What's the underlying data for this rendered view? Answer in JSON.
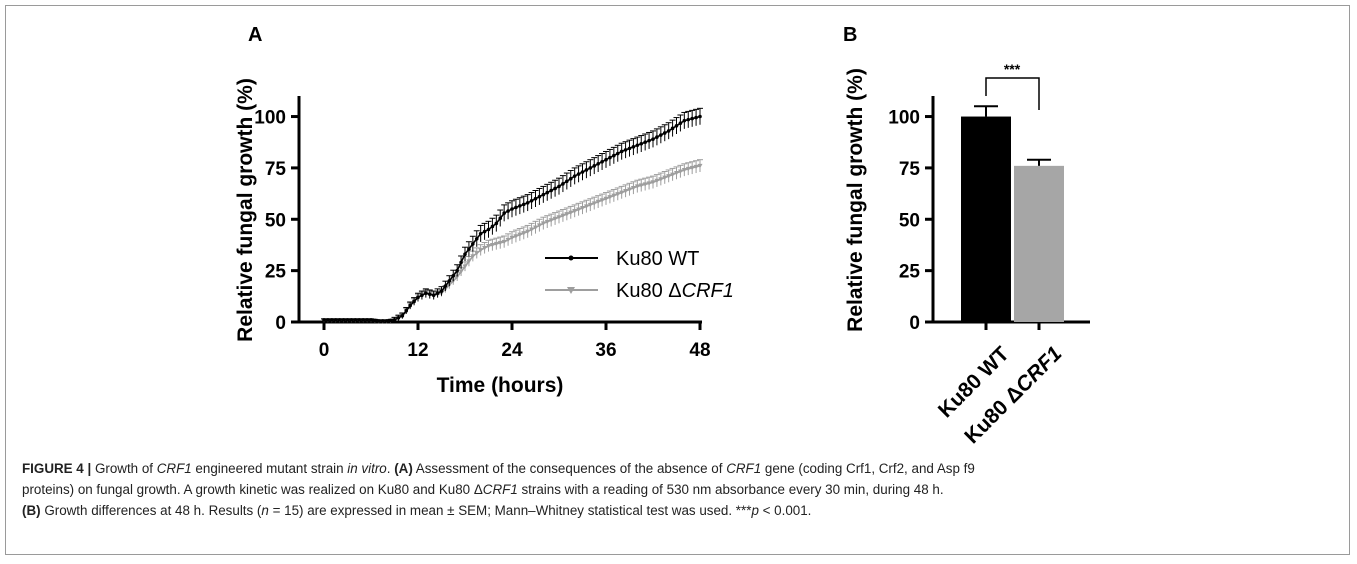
{
  "chart_data": [
    {
      "type": "line",
      "panel": "A",
      "xlabel": "Time (hours)",
      "ylabel": "Relative fungal growth (%)",
      "xlim": [
        0,
        48
      ],
      "ylim": [
        0,
        110
      ],
      "xticks": [
        0,
        12,
        24,
        36,
        48
      ],
      "yticks": [
        0,
        25,
        50,
        75,
        100
      ],
      "legend_position": "center-right",
      "series": [
        {
          "name": "Ku80 WT",
          "marker": "circle",
          "color": "#000000",
          "points": [
            [
              0,
              1
            ],
            [
              2,
              1
            ],
            [
              4,
              1
            ],
            [
              6,
              1
            ],
            [
              7,
              0.5
            ],
            [
              8,
              0.5
            ],
            [
              9,
              1
            ],
            [
              10,
              3
            ],
            [
              11,
              8
            ],
            [
              12,
              12
            ],
            [
              13,
              14
            ],
            [
              14,
              13
            ],
            [
              15,
              15
            ],
            [
              16,
              20
            ],
            [
              17,
              25
            ],
            [
              18,
              33
            ],
            [
              19,
              38
            ],
            [
              20,
              43
            ],
            [
              21,
              45
            ],
            [
              22,
              48
            ],
            [
              23,
              53
            ],
            [
              24,
              55
            ],
            [
              26,
              58
            ],
            [
              28,
              62
            ],
            [
              30,
              66
            ],
            [
              32,
              71
            ],
            [
              34,
              75
            ],
            [
              36,
              79
            ],
            [
              38,
              83
            ],
            [
              40,
              86
            ],
            [
              42,
              89
            ],
            [
              44,
              93
            ],
            [
              46,
              98
            ],
            [
              48,
              100
            ]
          ],
          "error": 4
        },
        {
          "name": "Ku80 ΔCRF1",
          "marker": "triangle-down",
          "color": "#9e9e9e",
          "points": [
            [
              0,
              1
            ],
            [
              2,
              1
            ],
            [
              4,
              1
            ],
            [
              6,
              1
            ],
            [
              7,
              0.5
            ],
            [
              8,
              0.5
            ],
            [
              9,
              1
            ],
            [
              10,
              3
            ],
            [
              11,
              8
            ],
            [
              12,
              12
            ],
            [
              13,
              14
            ],
            [
              14,
              13
            ],
            [
              15,
              14
            ],
            [
              16,
              18
            ],
            [
              17,
              22
            ],
            [
              18,
              27
            ],
            [
              19,
              32
            ],
            [
              20,
              35
            ],
            [
              21,
              37
            ],
            [
              22,
              38
            ],
            [
              23,
              39
            ],
            [
              24,
              41
            ],
            [
              26,
              44
            ],
            [
              28,
              48
            ],
            [
              30,
              51
            ],
            [
              32,
              54
            ],
            [
              34,
              57
            ],
            [
              36,
              60
            ],
            [
              38,
              63
            ],
            [
              40,
              66
            ],
            [
              42,
              68
            ],
            [
              44,
              71
            ],
            [
              46,
              74
            ],
            [
              48,
              76
            ]
          ],
          "error": 3
        }
      ]
    },
    {
      "type": "bar",
      "panel": "B",
      "ylabel": "Relative fungal growth (%)",
      "categories": [
        "Ku80 WT",
        "Ku80 ΔCRF1"
      ],
      "values": [
        100,
        76
      ],
      "errors": [
        5,
        3
      ],
      "colors": [
        "#000000",
        "#a6a6a6"
      ],
      "ylim": [
        0,
        110
      ],
      "yticks": [
        0,
        25,
        50,
        75,
        100
      ],
      "annotation": "***"
    }
  ],
  "panelA": {
    "letter": "A",
    "ylabel": "Relative fungal growth (%)",
    "xlabel": "Time (hours)",
    "yticks": [
      "0",
      "25",
      "50",
      "75",
      "100"
    ],
    "xticks": [
      "0",
      "12",
      "24",
      "36",
      "48"
    ],
    "legend": {
      "wt": "Ku80 WT",
      "mut_prefix": "Ku80 Δ",
      "mut_gene": "CRF1"
    }
  },
  "panelB": {
    "letter": "B",
    "ylabel": "Relative fungal growth (%)",
    "yticks": [
      "0",
      "25",
      "50",
      "75",
      "100"
    ],
    "cat1": "Ku80 WT",
    "cat2_prefix": "Ku80 Δ",
    "cat2_gene": "CRF1",
    "significance": "***"
  },
  "caption": {
    "fig_label": "FIGURE 4 |",
    "line1_a": " Growth of ",
    "line1_gene": "CRF1",
    "line1_b": " engineered mutant strain ",
    "line1_invitro": "in vitro",
    "line1_c": ". ",
    "line1_A": "(A)",
    "line1_d": " Assessment of the consequences of the absence of ",
    "line1_gene2": "CRF1",
    "line1_e": " gene (coding Crf1, Crf2, and Asp f9",
    "line2_a": "proteins) on fungal growth. A growth kinetic was realized on Ku80 and Ku80 Δ",
    "line2_gene": "CRF1",
    "line2_b": " strains with a reading of 530 nm absorbance every 30 min, during 48 h.",
    "line3_B": "(B)",
    "line3_a": " Growth differences at 48 h. Results (",
    "line3_n": "n",
    "line3_b": " = 15) are expressed in mean ± SEM; Mann–Whitney statistical test was used. ***",
    "line3_p": "p",
    "line3_c": " < 0.001."
  }
}
